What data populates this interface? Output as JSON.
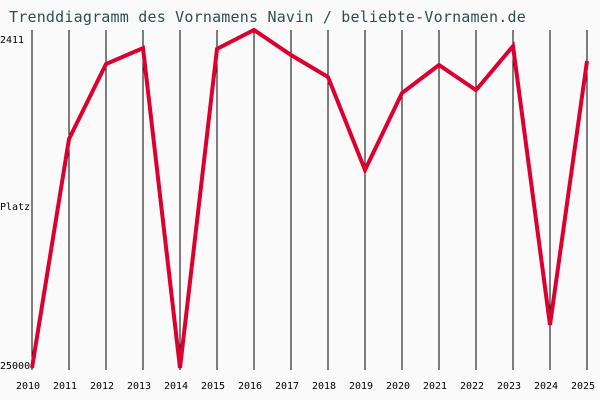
{
  "title": "Trenddiagramm des Vornamens Navin / beliebte-Vornamen.de",
  "colors": {
    "line": "#dc0030",
    "grid": "#000000",
    "background": "#fafafa",
    "title": "#2f4f4f"
  },
  "y_axis": {
    "top_label": "2411",
    "mid_label": "Platz",
    "bottom_label": "25000"
  },
  "chart_data": {
    "type": "line",
    "title": "Trenddiagramm des Vornamens Navin / beliebte-Vornamen.de",
    "xlabel": "",
    "ylabel": "Platz",
    "categories": [
      "2010",
      "2011",
      "2012",
      "2013",
      "2014",
      "2015",
      "2016",
      "2017",
      "2018",
      "2019",
      "2020",
      "2021",
      "2022",
      "2023",
      "2024",
      "2025"
    ],
    "series": [
      {
        "name": "Navin",
        "values": [
          25000,
          9180,
          4000,
          2900,
          25000,
          2960,
          1650,
          3380,
          4900,
          11320,
          6000,
          4070,
          5800,
          2760,
          22030,
          3790
        ]
      }
    ],
    "ylim": [
      25000,
      2411
    ],
    "y_inverted": true,
    "y_ticks": [
      2411,
      25000
    ],
    "grid": {
      "vertical": true,
      "horizontal": false
    },
    "legend": null
  }
}
